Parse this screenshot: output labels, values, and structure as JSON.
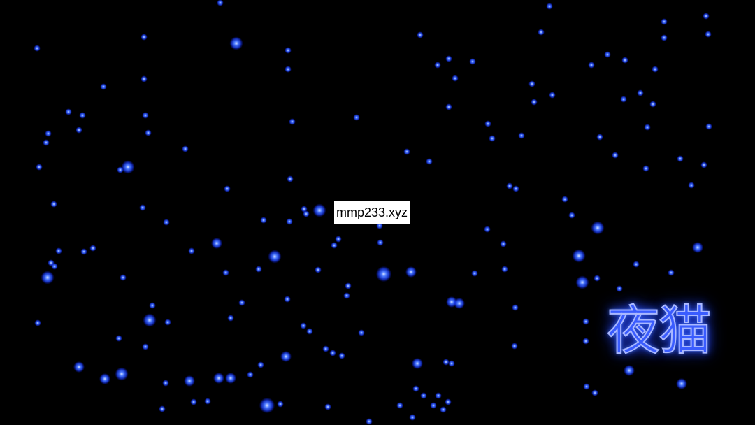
{
  "overlay": {
    "url_text": "mmp233.xyz"
  },
  "logo": {
    "text": "夜猫"
  },
  "colors": {
    "background": "#000000",
    "star": "#2f5bff",
    "star_core": "#b8ccff",
    "logo_fill": "#3a5cff",
    "logo_glow": "#4a7bff"
  }
}
